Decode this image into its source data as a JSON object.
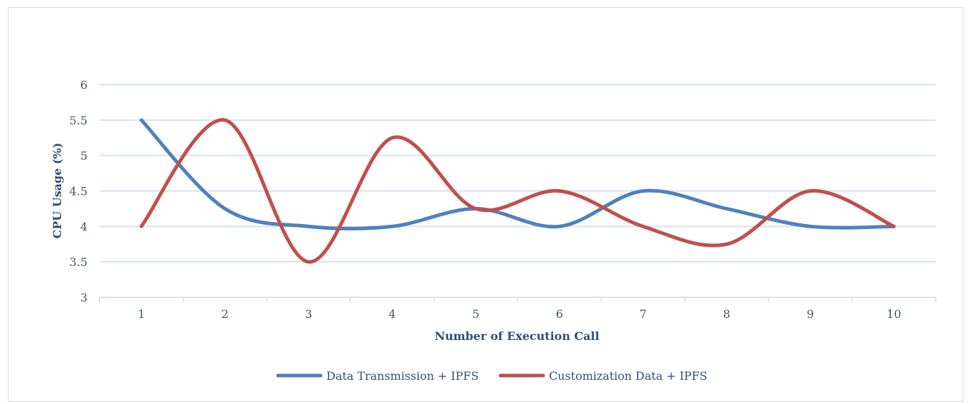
{
  "chart_data": {
    "type": "line",
    "title": "",
    "xlabel": "Number of Execution Call",
    "ylabel": "CPU Usage (%)",
    "categories": [
      "1",
      "2",
      "3",
      "4",
      "5",
      "6",
      "7",
      "8",
      "9",
      "10"
    ],
    "ylim": [
      3,
      6
    ],
    "yticks": [
      "3",
      "3.5",
      "4",
      "4.5",
      "5",
      "5.5",
      "6"
    ],
    "grid": true,
    "legend": "bottom",
    "series": [
      {
        "name": "Data Transmission + IPFS",
        "color": "#4f81bd",
        "values": [
          5.5,
          4.25,
          4.0,
          4.0,
          4.25,
          4.0,
          4.5,
          4.25,
          4.0,
          4.0
        ]
      },
      {
        "name": "Customization Data + IPFS",
        "color": "#c0504d",
        "values": [
          4.0,
          5.5,
          3.5,
          5.25,
          4.25,
          4.5,
          4.0,
          3.75,
          4.5,
          4.0
        ]
      }
    ]
  }
}
